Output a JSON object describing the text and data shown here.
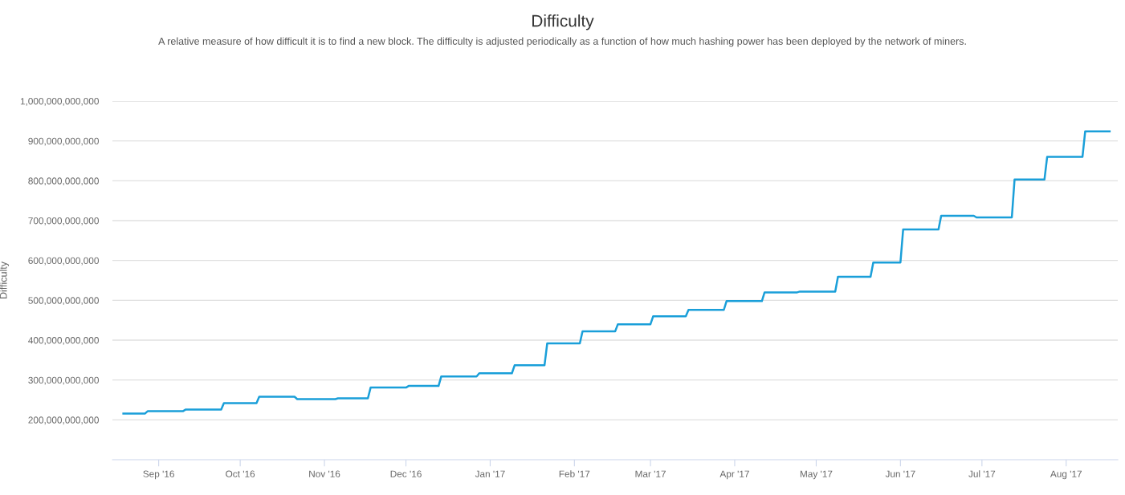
{
  "chart_data": {
    "type": "line",
    "title": "Difficulty",
    "subtitle": "A relative measure of how difficult it is to find a new block. The difficulty is adjusted periodically as a function of how much hashing power has been deployed by the network of miners.",
    "ylabel": "Difficulty",
    "x": [
      "2016-08-19",
      "2016-08-27",
      "2016-08-28",
      "2016-09-10",
      "2016-09-11",
      "2016-09-24",
      "2016-09-25",
      "2016-10-07",
      "2016-10-08",
      "2016-10-21",
      "2016-10-22",
      "2016-11-05",
      "2016-11-06",
      "2016-11-17",
      "2016-11-18",
      "2016-12-01",
      "2016-12-02",
      "2016-12-13",
      "2016-12-14",
      "2016-12-27",
      "2016-12-28",
      "2017-01-09",
      "2017-01-10",
      "2017-01-21",
      "2017-01-22",
      "2017-02-03",
      "2017-02-04",
      "2017-02-16",
      "2017-02-17",
      "2017-03-01",
      "2017-03-02",
      "2017-03-14",
      "2017-03-15",
      "2017-03-28",
      "2017-03-29",
      "2017-04-11",
      "2017-04-12",
      "2017-04-24",
      "2017-04-25",
      "2017-05-08",
      "2017-05-09",
      "2017-05-21",
      "2017-05-22",
      "2017-06-01",
      "2017-06-02",
      "2017-06-15",
      "2017-06-16",
      "2017-06-28",
      "2017-06-29",
      "2017-07-12",
      "2017-07-13",
      "2017-07-24",
      "2017-07-25",
      "2017-08-07",
      "2017-08-08",
      "2017-08-17"
    ],
    "series": [
      {
        "color": "#1a9fd9",
        "values": [
          216000000000,
          216000000000,
          222000000000,
          222000000000,
          226000000000,
          226000000000,
          242000000000,
          242000000000,
          258000000000,
          258000000000,
          252000000000,
          252000000000,
          254000000000,
          254000000000,
          281000000000,
          281000000000,
          285000000000,
          285000000000,
          309000000000,
          309000000000,
          317000000000,
          317000000000,
          337000000000,
          337000000000,
          392000000000,
          392000000000,
          422000000000,
          422000000000,
          440000000000,
          440000000000,
          460000000000,
          460000000000,
          476000000000,
          476000000000,
          498000000000,
          498000000000,
          520000000000,
          520000000000,
          522000000000,
          522000000000,
          559000000000,
          559000000000,
          595000000000,
          595000000000,
          678000000000,
          678000000000,
          712000000000,
          712000000000,
          708000000000,
          708000000000,
          803000000000,
          803000000000,
          860000000000,
          860000000000,
          924000000000,
          924000000000
        ]
      }
    ],
    "xlim": [
      "2016-08-15",
      "2017-08-20"
    ],
    "xticks": [
      {
        "value": "2016-09-01",
        "label": "Sep '16"
      },
      {
        "value": "2016-10-01",
        "label": "Oct '16"
      },
      {
        "value": "2016-11-01",
        "label": "Nov '16"
      },
      {
        "value": "2016-12-01",
        "label": "Dec '16"
      },
      {
        "value": "2017-01-01",
        "label": "Jan '17"
      },
      {
        "value": "2017-02-01",
        "label": "Feb '17"
      },
      {
        "value": "2017-03-01",
        "label": "Mar '17"
      },
      {
        "value": "2017-04-01",
        "label": "Apr '17"
      },
      {
        "value": "2017-05-01",
        "label": "May '17"
      },
      {
        "value": "2017-06-01",
        "label": "Jun '17"
      },
      {
        "value": "2017-07-01",
        "label": "Jul '17"
      },
      {
        "value": "2017-08-01",
        "label": "Aug '17"
      }
    ],
    "ylim": [
      100000000000,
      1000000000000
    ],
    "yticks": [
      {
        "value": 200000000000,
        "label": "200,000,000,000"
      },
      {
        "value": 300000000000,
        "label": "300,000,000,000"
      },
      {
        "value": 400000000000,
        "label": "400,000,000,000"
      },
      {
        "value": 500000000000,
        "label": "500,000,000,000"
      },
      {
        "value": 600000000000,
        "label": "600,000,000,000"
      },
      {
        "value": 700000000000,
        "label": "700,000,000,000"
      },
      {
        "value": 800000000000,
        "label": "800,000,000,000"
      },
      {
        "value": 900000000000,
        "label": "900,000,000,000"
      },
      {
        "value": 1000000000000,
        "label": "1,000,000,000,000"
      }
    ],
    "grid": "y",
    "marker": "none",
    "line_style": "solid"
  }
}
